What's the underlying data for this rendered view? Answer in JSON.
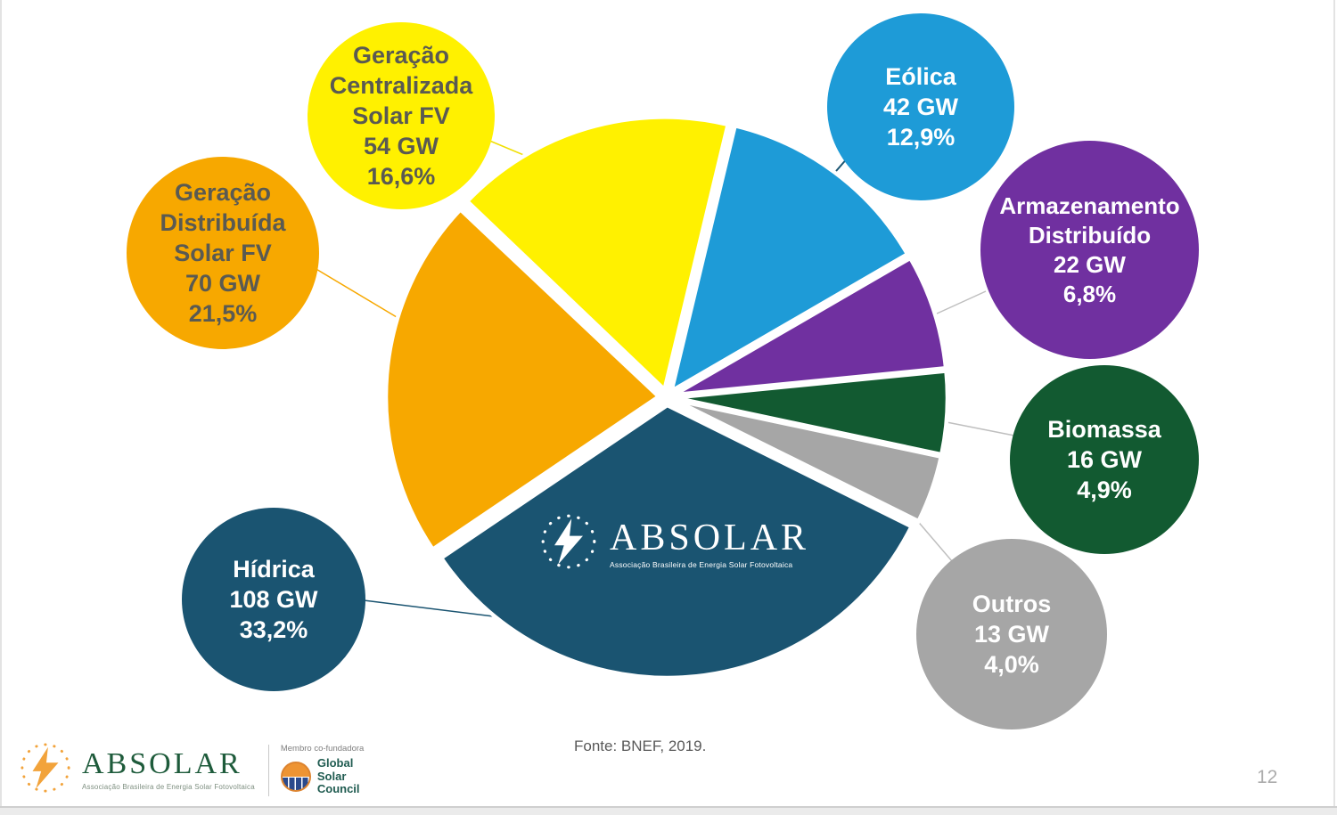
{
  "slide": {
    "page_number": "12",
    "source_note": "Fonte: BNEF, 2019.",
    "background": "#FFFFFF"
  },
  "chart_data": {
    "type": "pie",
    "unit": "GW",
    "source": "Fonte: BNEF, 2019.",
    "legend_position": "floating callout bubbles around pie",
    "start_angle_deg": -46.3,
    "exploded": true,
    "slices": [
      {
        "label": "Geração Centralizada Solar FV",
        "value_gw": 54,
        "pct": 16.6,
        "pct_label": "16,6%",
        "color": "#FFF100"
      },
      {
        "label": "Eólica",
        "value_gw": 42,
        "pct": 12.9,
        "pct_label": "12,9%",
        "color": "#1E9BD7"
      },
      {
        "label": "Armazenamento Distribuído",
        "value_gw": 22,
        "pct": 6.8,
        "pct_label": "6,8%",
        "color": "#7030A0"
      },
      {
        "label": "Biomassa",
        "value_gw": 16,
        "pct": 4.9,
        "pct_label": "4,9%",
        "color": "#125A31"
      },
      {
        "label": "Outros",
        "value_gw": 13,
        "pct": 4.0,
        "pct_label": "4,0%",
        "color": "#A6A6A6"
      },
      {
        "label": "Hídrica",
        "value_gw": 108,
        "pct": 33.2,
        "pct_label": "33,2%",
        "color": "#1A5471"
      },
      {
        "label": "Geração Distribuída Solar FV",
        "value_gw": 70,
        "pct": 21.5,
        "pct_label": "21,5%",
        "color": "#F7A800"
      }
    ]
  },
  "bubbles": [
    {
      "label": "Geração\nCentralizada\nSolar FV\n54 GW\n16,6%",
      "bg": "#FFF100",
      "fg": "#5A5A52",
      "line": "#F0DF00"
    },
    {
      "label": "Geração\nDistribuída\nSolar FV\n70 GW\n21,5%",
      "bg": "#F7A800",
      "fg": "#5A5A52",
      "line": "#F7A800"
    },
    {
      "label": "Hídrica\n108 GW\n33,2%",
      "bg": "#1A5471",
      "fg": "#FFFFFF",
      "line": "#1A5471"
    },
    {
      "label": "Eólica\n42 GW\n12,9%",
      "bg": "#1E9BD7",
      "fg": "#FFFFFF",
      "line": "#1A5471"
    },
    {
      "label": "Armazenamento\nDistribuído\n22 GW\n6,8%",
      "bg": "#7030A0",
      "fg": "#FFFFFF",
      "line": "#BFBFBF"
    },
    {
      "label": "Biomassa\n16 GW\n4,9%",
      "bg": "#125A31",
      "fg": "#FFFFFF",
      "line": "#BFBFBF"
    },
    {
      "label": "Outros\n13 GW\n4,0%",
      "bg": "#A6A6A6",
      "fg": "#FFFFFF",
      "line": "#BFBFBF"
    }
  ],
  "center_logo": {
    "brand": "ABSOLAR",
    "tagline": "Associação Brasileira de Energia Solar Fotovoltaica"
  },
  "footer": {
    "brand": "ABSOLAR",
    "brand_tagline": "Associação Brasileira de Energia Solar Fotovoltaica",
    "membership_label": "Membro co-fundadora",
    "council_name": "Global\nSolar\nCouncil"
  },
  "colors": {
    "brand_green": "#1E5B3B",
    "bolt_orange": "#F2A33B",
    "gsc_teal": "#1F5B50",
    "gray_text": "#595959",
    "page_gray": "#ACACAC",
    "connector_gray": "#BFBFBF"
  }
}
